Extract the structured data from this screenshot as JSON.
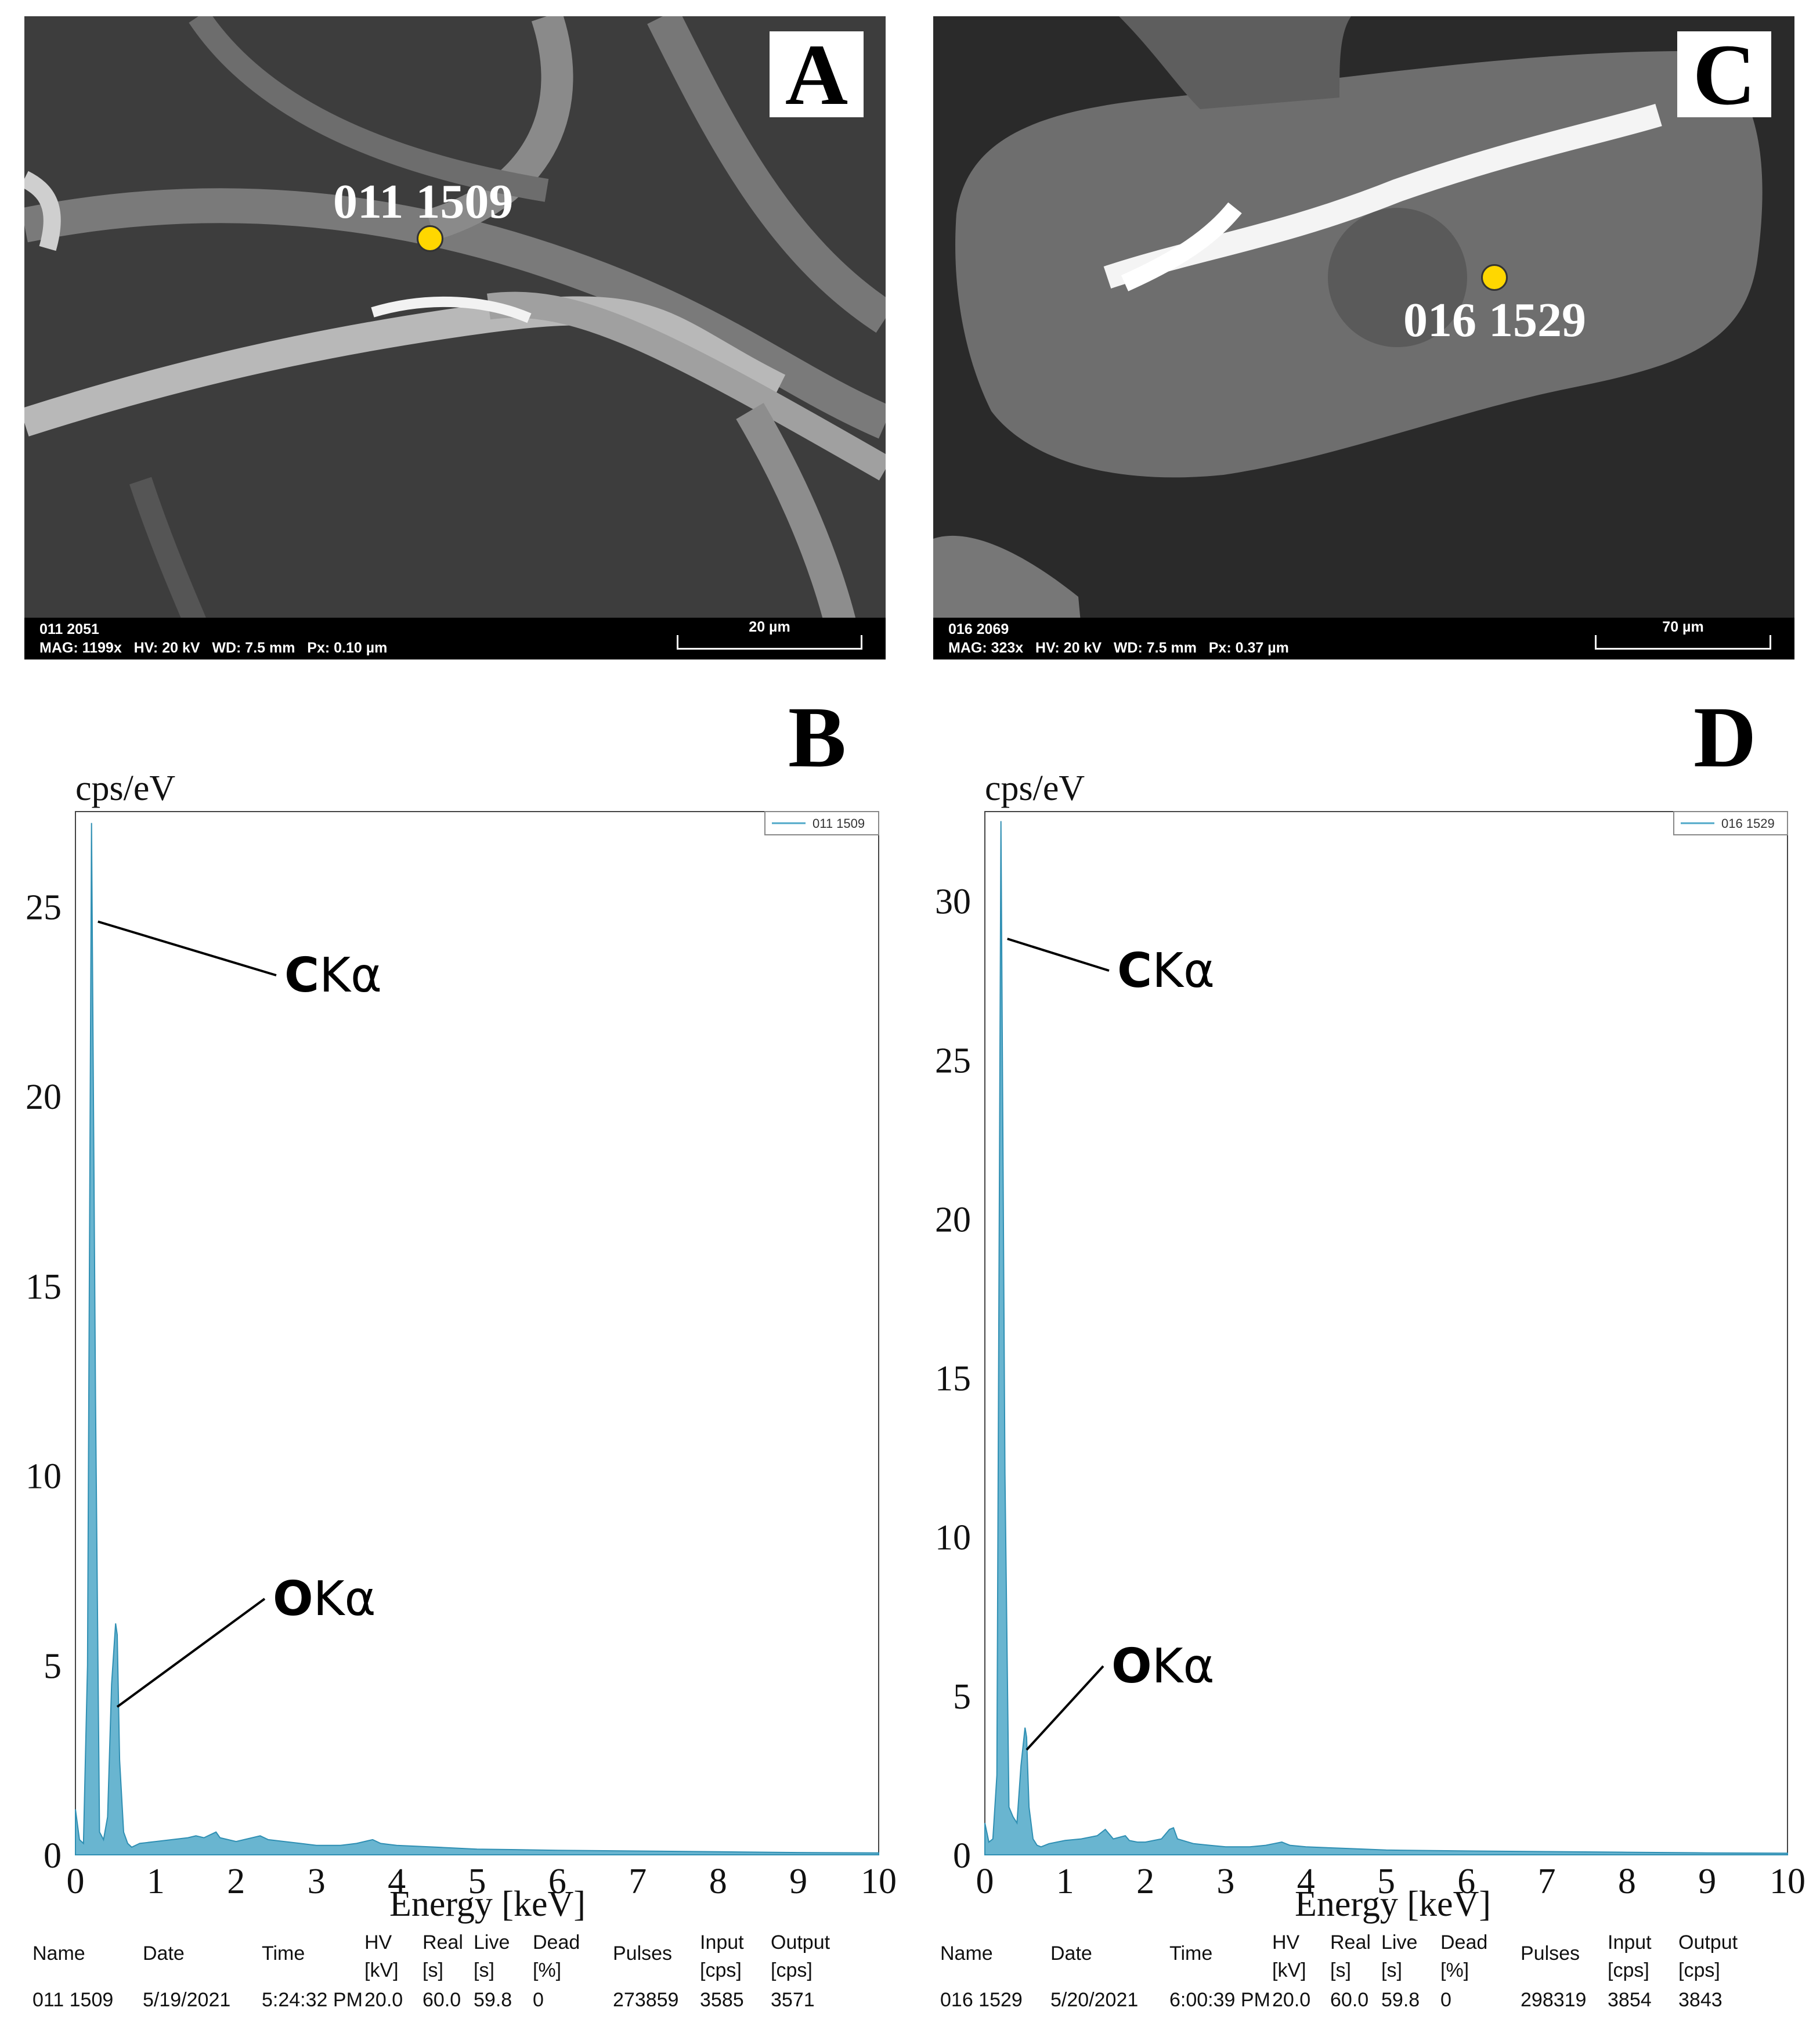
{
  "panels": {
    "A": {
      "letter": "A",
      "point_label": "011 1509",
      "image_id": "011 2051",
      "meta": "MAG: 1199x   HV: 20 kV   WD: 7.5 mm   Px: 0.10 µm",
      "scale_label": "20 µm"
    },
    "C": {
      "letter": "C",
      "point_label": "016 1529",
      "image_id": "016 2069",
      "meta": "MAG: 323x   HV: 20 kV   WD: 7.5 mm   Px: 0.37 µm",
      "scale_label": "70 µm"
    }
  },
  "chart_data": [
    {
      "panel": "B",
      "type": "area",
      "ylabel": "cps/eV",
      "xlabel": "Energy [keV]",
      "xlim": [
        0,
        10
      ],
      "ylim": [
        0,
        27.5
      ],
      "xticks": [
        "0",
        "1",
        "2",
        "3",
        "4",
        "5",
        "6",
        "7",
        "8",
        "9",
        "10"
      ],
      "yticks": [
        "0",
        "5",
        "10",
        "15",
        "20",
        "25"
      ],
      "legend": {
        "name": "011 1509",
        "position": "top-right"
      },
      "color": "#4fa8c8",
      "series": [
        {
          "name": "011 1509",
          "x": [
            0.0,
            0.05,
            0.1,
            0.15,
            0.2,
            0.25,
            0.3,
            0.35,
            0.4,
            0.45,
            0.5,
            0.52,
            0.55,
            0.6,
            0.65,
            0.7,
            0.8,
            1.0,
            1.2,
            1.4,
            1.5,
            1.6,
            1.75,
            1.8,
            1.9,
            2.0,
            2.2,
            2.3,
            2.4,
            2.6,
            2.8,
            3.0,
            3.3,
            3.5,
            3.6,
            3.7,
            3.8,
            4.0,
            4.5,
            5.0,
            6.0,
            7.0,
            8.0,
            9.0,
            10.0
          ],
          "y": [
            1.2,
            0.4,
            0.3,
            5.0,
            27.2,
            12.0,
            0.6,
            0.4,
            1.0,
            4.5,
            6.1,
            5.8,
            2.5,
            0.6,
            0.3,
            0.2,
            0.3,
            0.35,
            0.4,
            0.45,
            0.5,
            0.45,
            0.6,
            0.45,
            0.4,
            0.35,
            0.45,
            0.5,
            0.4,
            0.35,
            0.3,
            0.25,
            0.25,
            0.3,
            0.35,
            0.4,
            0.3,
            0.25,
            0.2,
            0.15,
            0.12,
            0.1,
            0.08,
            0.06,
            0.05
          ]
        }
      ],
      "annotations": [
        {
          "text": "CKα",
          "element": "C",
          "line": "Kα",
          "x": 0.28,
          "y": 24.6
        },
        {
          "text": "OKα",
          "element": "O",
          "line": "Kα",
          "x": 0.52,
          "y": 3.9
        }
      ]
    },
    {
      "panel": "D",
      "type": "area",
      "ylabel": "cps/eV",
      "xlabel": "Energy [keV]",
      "xlim": [
        0,
        10
      ],
      "ylim": [
        0,
        32.8
      ],
      "xticks": [
        "0",
        "1",
        "2",
        "3",
        "4",
        "5",
        "6",
        "7",
        "8",
        "9",
        "10"
      ],
      "yticks": [
        "0",
        "5",
        "10",
        "15",
        "20",
        "25",
        "30"
      ],
      "legend": {
        "name": "016 1529",
        "position": "top-right"
      },
      "color": "#4fa8c8",
      "series": [
        {
          "name": "016 1529",
          "x": [
            0.0,
            0.05,
            0.1,
            0.15,
            0.2,
            0.25,
            0.3,
            0.35,
            0.4,
            0.45,
            0.5,
            0.52,
            0.55,
            0.6,
            0.65,
            0.7,
            0.8,
            1.0,
            1.2,
            1.4,
            1.5,
            1.6,
            1.75,
            1.8,
            1.9,
            2.0,
            2.2,
            2.3,
            2.35,
            2.4,
            2.6,
            2.8,
            3.0,
            3.3,
            3.5,
            3.6,
            3.7,
            3.8,
            4.0,
            4.5,
            5.0,
            6.0,
            7.0,
            8.0,
            9.0,
            10.0
          ],
          "y": [
            1.0,
            0.4,
            0.5,
            2.5,
            32.5,
            12.0,
            1.5,
            1.2,
            1.0,
            2.8,
            4.0,
            3.7,
            1.5,
            0.5,
            0.3,
            0.25,
            0.35,
            0.45,
            0.5,
            0.6,
            0.8,
            0.5,
            0.6,
            0.45,
            0.4,
            0.4,
            0.5,
            0.8,
            0.85,
            0.5,
            0.35,
            0.3,
            0.25,
            0.25,
            0.3,
            0.35,
            0.4,
            0.3,
            0.25,
            0.2,
            0.15,
            0.12,
            0.1,
            0.08,
            0.06,
            0.05
          ]
        }
      ],
      "annotations": [
        {
          "text": "CKα",
          "element": "C",
          "line": "Kα",
          "x": 0.28,
          "y": 28.8
        },
        {
          "text": "OKα",
          "element": "O",
          "line": "Kα",
          "x": 0.52,
          "y": 3.3
        }
      ]
    }
  ],
  "tables": [
    {
      "panel": "B",
      "headers": [
        "Name",
        "Date",
        "Time",
        "HV [kV]",
        "Real [s]",
        "Live [s]",
        "Dead [%]",
        "Pulses",
        "Input [cps]",
        "Output [cps]"
      ],
      "row": [
        "011 1509",
        "5/19/2021",
        "5:24:32 PM",
        "20.0",
        "60.0",
        "59.8",
        "0",
        "273859",
        "3585",
        "3571"
      ]
    },
    {
      "panel": "D",
      "headers": [
        "Name",
        "Date",
        "Time",
        "HV [kV]",
        "Real [s]",
        "Live [s]",
        "Dead [%]",
        "Pulses",
        "Input [cps]",
        "Output [cps]"
      ],
      "row": [
        "016 1529",
        "5/20/2021",
        "6:00:39 PM",
        "20.0",
        "60.0",
        "59.8",
        "0",
        "298319",
        "3854",
        "3843"
      ]
    }
  ],
  "labels": {
    "B": "B",
    "D": "D"
  }
}
